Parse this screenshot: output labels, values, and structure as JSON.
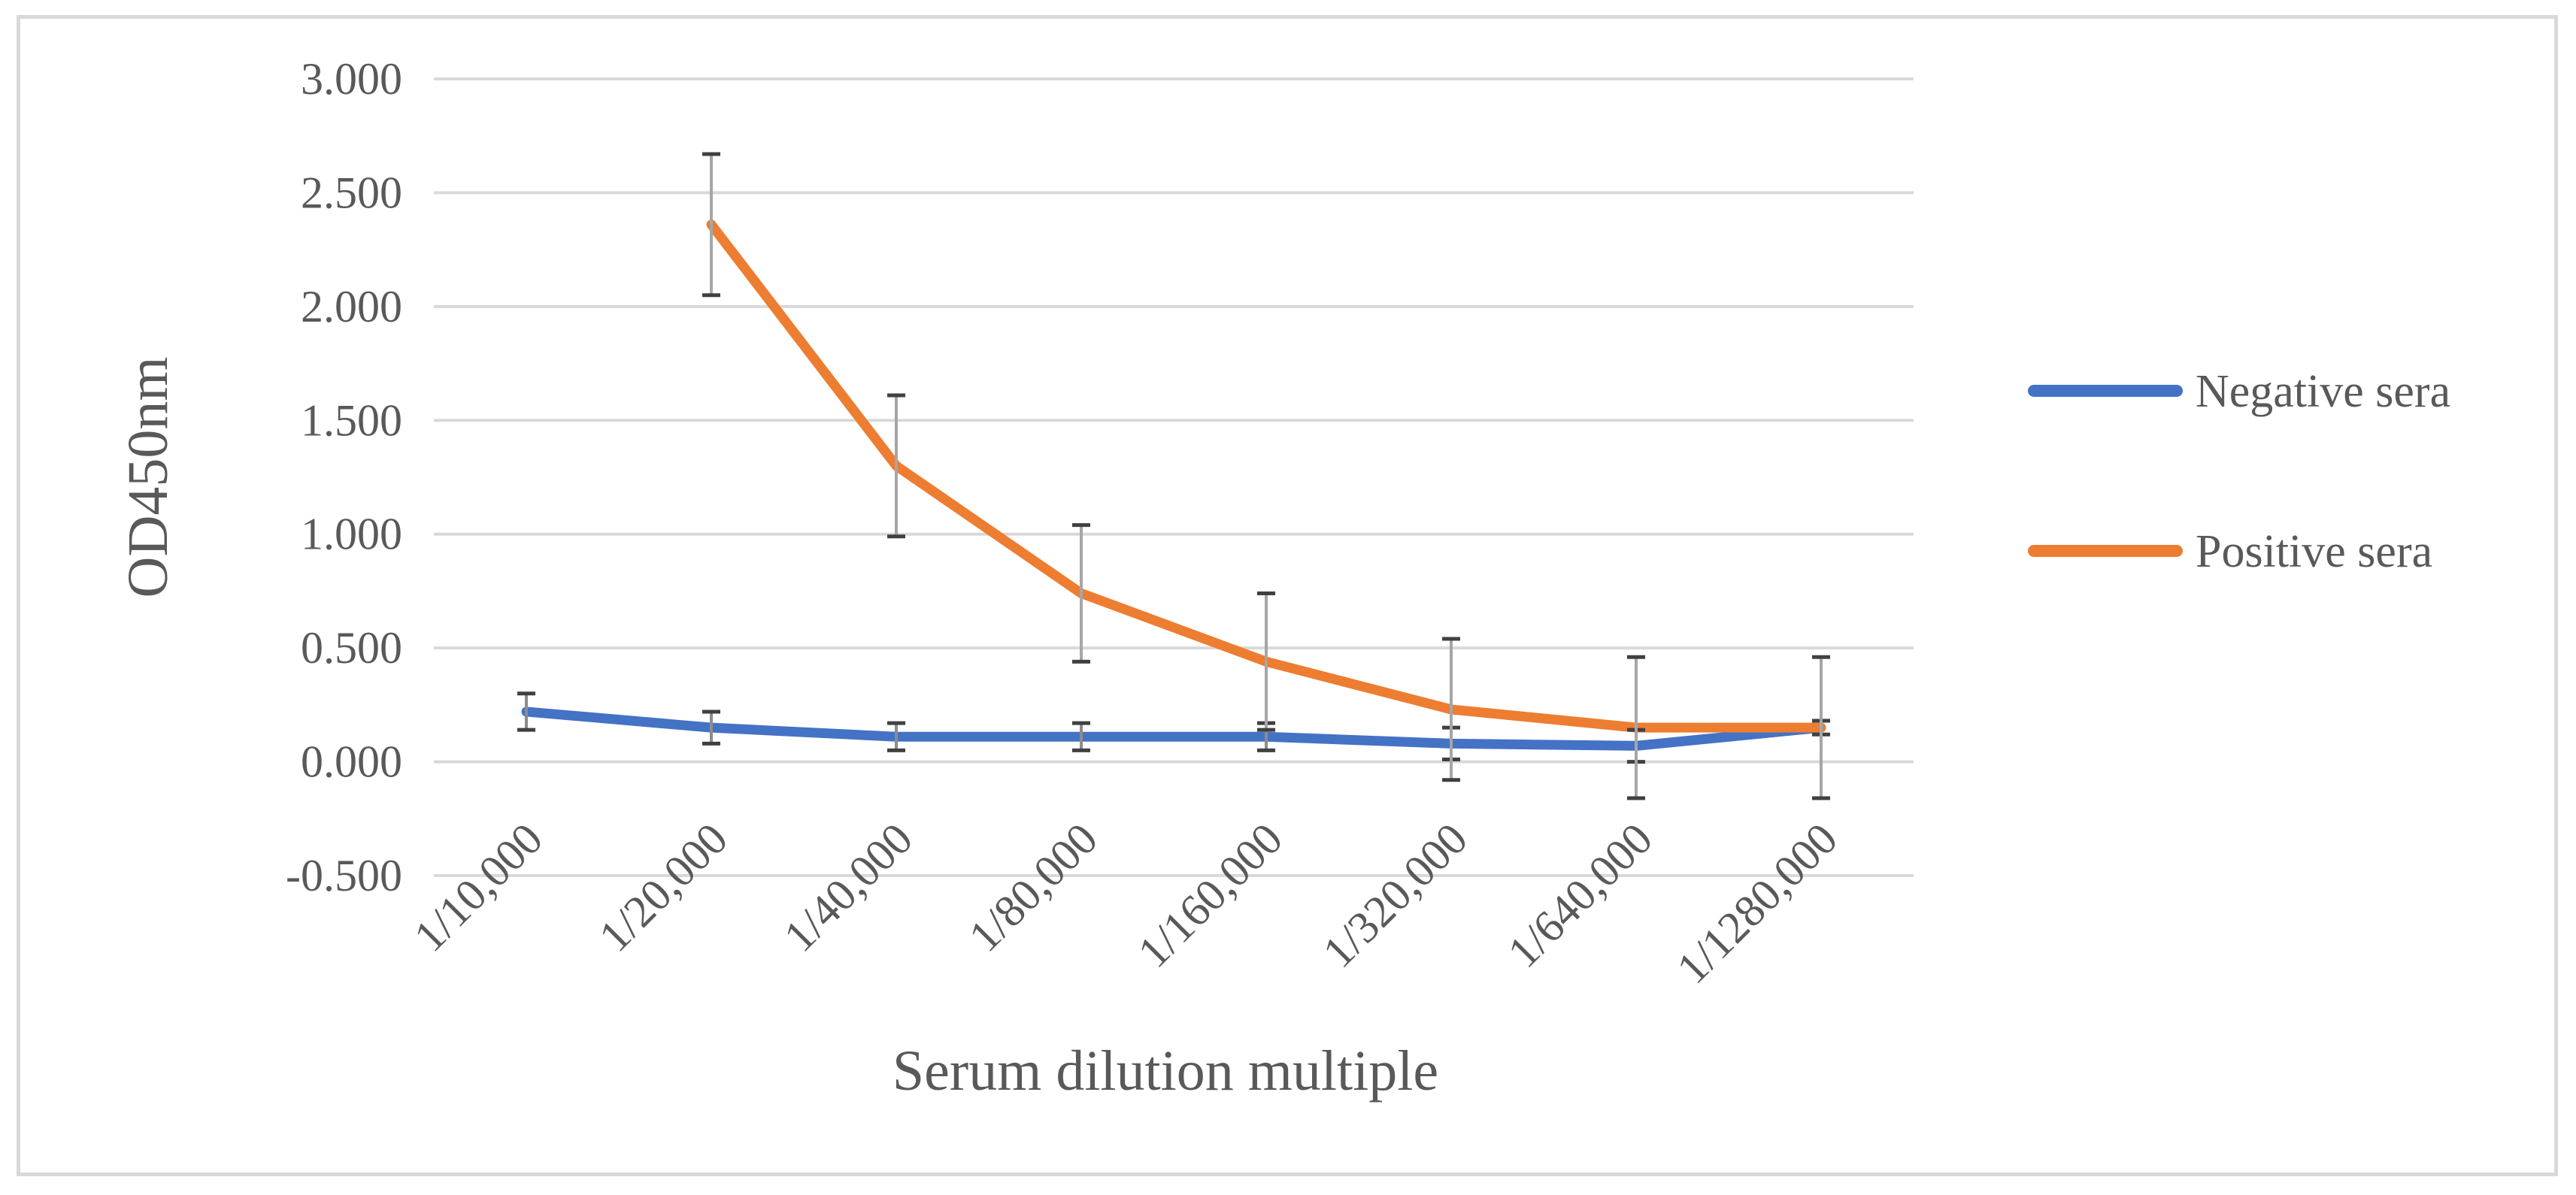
{
  "chart_data": {
    "type": "line",
    "title": "",
    "xlabel": "Serum dilution multiple",
    "ylabel": "OD450nm",
    "categories": [
      "1/10,000",
      "1/20,000",
      "1/40,000",
      "1/80,000",
      "1/160,000",
      "1/320,000",
      "1/640,000",
      "1/1280,000"
    ],
    "ylim": [
      -0.5,
      3.0
    ],
    "yticks": [
      -0.5,
      0.0,
      0.5,
      1.0,
      1.5,
      2.0,
      2.5,
      3.0
    ],
    "ytick_labels": [
      "-0.500",
      "0.000",
      "0.500",
      "1.000",
      "1.500",
      "2.000",
      "2.500",
      "3.000"
    ],
    "grid": true,
    "legend_position": "right",
    "series": [
      {
        "name": "Negative sera",
        "color": "#4472c4",
        "values": [
          0.22,
          0.15,
          0.11,
          0.11,
          0.11,
          0.08,
          0.07,
          0.15
        ],
        "error": [
          0.08,
          0.07,
          0.06,
          0.06,
          0.06,
          0.07,
          0.07,
          0.03
        ]
      },
      {
        "name": "Positive sera",
        "color": "#ed7d31",
        "values": [
          null,
          2.36,
          1.3,
          0.74,
          0.44,
          0.23,
          0.15,
          0.15
        ],
        "error": [
          null,
          0.31,
          0.31,
          0.3,
          0.3,
          0.31,
          0.31,
          0.31
        ]
      }
    ]
  }
}
